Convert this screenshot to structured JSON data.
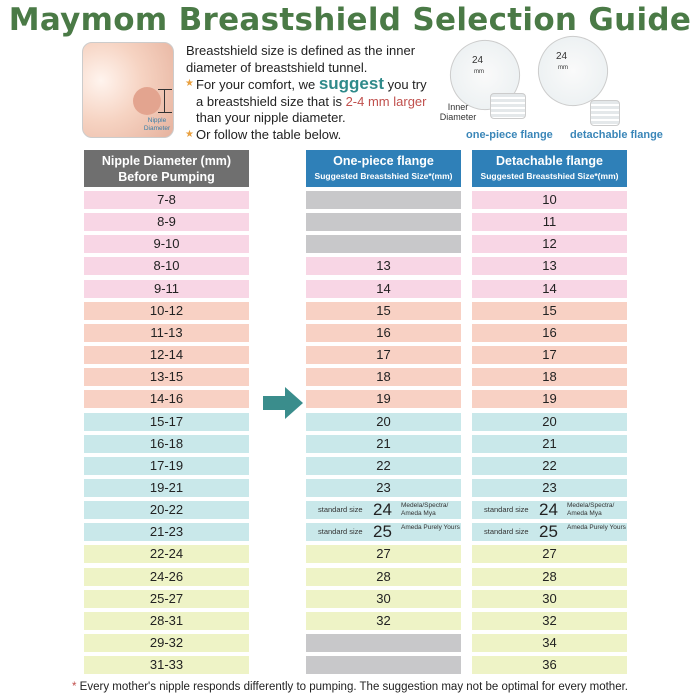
{
  "title": "Maymom Breastshield Selection Guide",
  "illustration": {
    "label": "Nipple Diameter"
  },
  "description": {
    "line1": "Breastshield size is defined as the inner diameter of breastshield tunnel.",
    "line2_a": "For your comfort, we ",
    "line2_suggest": "suggest",
    "line2_b": " you try a breastshield size that is ",
    "line2_red": "2-4 mm larger",
    "line2_c": " than your nipple diameter.",
    "line3": "Or follow the table below."
  },
  "flanges": {
    "size_label": "24",
    "unit": "mm",
    "inner_label": "Inner Diameter",
    "one_piece": "one-piece flange",
    "detachable": "detachable flange"
  },
  "headers": {
    "nipple": {
      "l1": "Nipple Diameter (mm)",
      "l2": "Before Pumping"
    },
    "one_piece": {
      "title": "One-piece flange",
      "sub": "Suggested Breastshied Size*(mm)"
    },
    "detachable": {
      "title": "Detachable flange",
      "sub": "Suggested Breastshied Size*(mm)"
    }
  },
  "colors": {
    "pink": "#f8d6e5",
    "salmon": "#f8d1c4",
    "cyan": "#c9e8ea",
    "yellow": "#eef3c6",
    "gray": "#c8c8ca",
    "title": "#4a7a46",
    "header_blue": "#2f80b8",
    "arrow": "#3a8d8c"
  },
  "rows": [
    {
      "nipple": "7-8",
      "one": null,
      "det": "10",
      "c": "pink"
    },
    {
      "nipple": "8-9",
      "one": null,
      "det": "11",
      "c": "pink"
    },
    {
      "nipple": "9-10",
      "one": null,
      "det": "12",
      "c": "pink"
    },
    {
      "nipple": "8-10",
      "one": "13",
      "det": "13",
      "c": "pink"
    },
    {
      "nipple": "9-11",
      "one": "14",
      "det": "14",
      "c": "pink"
    },
    {
      "nipple": "10-12",
      "one": "15",
      "det": "15",
      "c": "salmon"
    },
    {
      "nipple": "11-13",
      "one": "16",
      "det": "16",
      "c": "salmon"
    },
    {
      "nipple": "12-14",
      "one": "17",
      "det": "17",
      "c": "salmon"
    },
    {
      "nipple": "13-15",
      "one": "18",
      "det": "18",
      "c": "salmon"
    },
    {
      "nipple": "14-16",
      "one": "19",
      "det": "19",
      "c": "salmon"
    },
    {
      "nipple": "15-17",
      "one": "20",
      "det": "20",
      "c": "cyan"
    },
    {
      "nipple": "16-18",
      "one": "21",
      "det": "21",
      "c": "cyan"
    },
    {
      "nipple": "17-19",
      "one": "22",
      "det": "22",
      "c": "cyan"
    },
    {
      "nipple": "19-21",
      "one": "23",
      "det": "23",
      "c": "cyan"
    },
    {
      "nipple": "20-22",
      "one": "24",
      "det": "24",
      "c": "cyan",
      "std": "standard size",
      "brand": "Medela/Spectra/ Ameda Mya"
    },
    {
      "nipple": "21-23",
      "one": "25",
      "det": "25",
      "c": "cyan",
      "std": "standard size",
      "brand": "Ameda Purely Yours"
    },
    {
      "nipple": "22-24",
      "one": "27",
      "det": "27",
      "c": "yellow"
    },
    {
      "nipple": "24-26",
      "one": "28",
      "det": "28",
      "c": "yellow"
    },
    {
      "nipple": "25-27",
      "one": "30",
      "det": "30",
      "c": "yellow"
    },
    {
      "nipple": "28-31",
      "one": "32",
      "det": "32",
      "c": "yellow"
    },
    {
      "nipple": "29-32",
      "one": null,
      "det": "34",
      "c": "yellow"
    },
    {
      "nipple": "31-33",
      "one": null,
      "det": "36",
      "c": "yellow"
    }
  ],
  "footer": {
    "asterisk": "*",
    "text": " Every mother's nipple responds differently to pumping. The suggestion may not be optimal for every mother."
  }
}
